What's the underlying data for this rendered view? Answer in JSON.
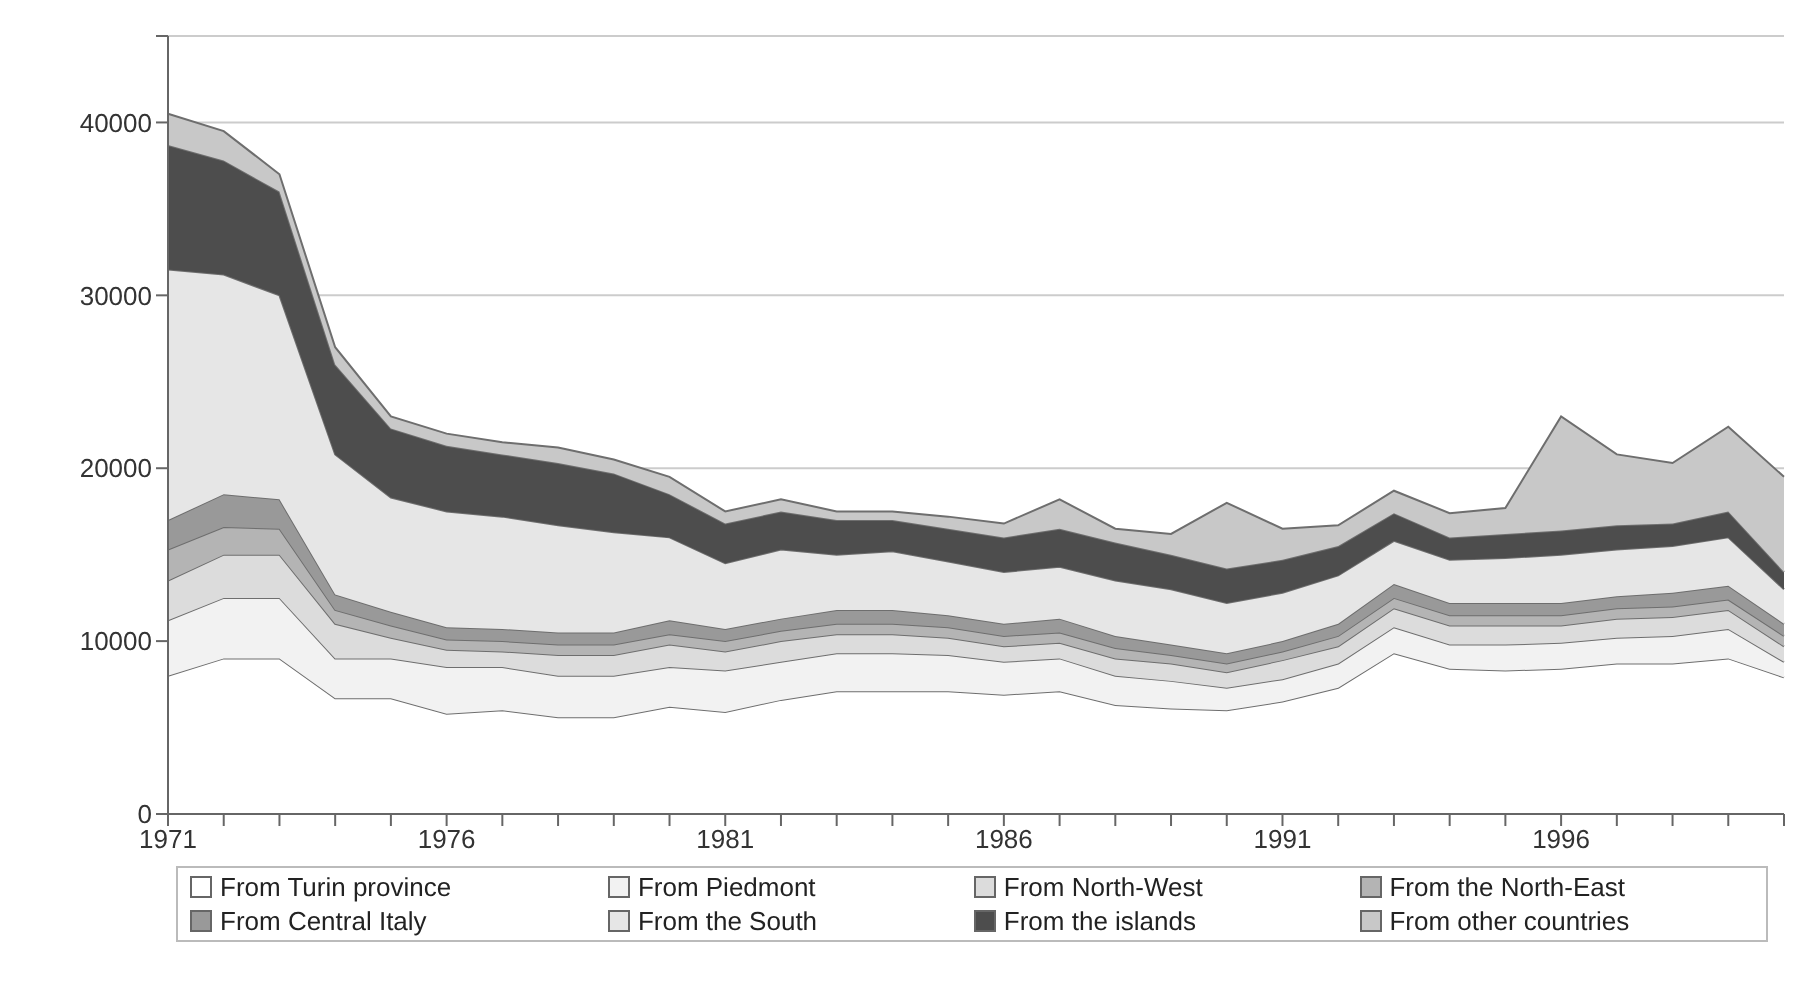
{
  "chart_data": {
    "type": "area",
    "stacked": true,
    "categories": [
      "1971",
      null,
      null,
      null,
      null,
      "1976",
      null,
      null,
      null,
      null,
      "1981",
      null,
      null,
      null,
      null,
      "1986",
      null,
      null,
      null,
      null,
      "1991",
      null,
      null,
      null,
      null,
      "1996",
      null,
      null,
      null,
      null
    ],
    "series": [
      {
        "name": "From Turin province",
        "color": "#ffffff",
        "values": [
          8000,
          9000,
          9000,
          6700,
          6700,
          5800,
          6000,
          5600,
          5600,
          6200,
          5900,
          6600,
          7100,
          7100,
          7100,
          6900,
          7100,
          6300,
          6100,
          6000,
          6500,
          7300,
          9300,
          8400,
          8300,
          8400,
          8700,
          8700,
          9000,
          7900
        ]
      },
      {
        "name": "From Piedmont",
        "color": "#f2f2f2",
        "values": [
          3200,
          3500,
          3500,
          2300,
          2300,
          2700,
          2500,
          2400,
          2400,
          2300,
          2400,
          2200,
          2200,
          2200,
          2100,
          1900,
          1900,
          1700,
          1600,
          1300,
          1300,
          1400,
          1500,
          1400,
          1500,
          1500,
          1500,
          1600,
          1700,
          900
        ]
      },
      {
        "name": "From North-West",
        "color": "#dcdcdc",
        "values": [
          2300,
          2500,
          2500,
          2000,
          1200,
          1000,
          900,
          1200,
          1200,
          1300,
          1100,
          1200,
          1100,
          1100,
          1000,
          900,
          900,
          1000,
          1000,
          900,
          1100,
          1000,
          1100,
          1100,
          1100,
          1000,
          1100,
          1100,
          1100,
          900
        ]
      },
      {
        "name": "From the North-East",
        "color": "#b4b4b4",
        "values": [
          1800,
          1600,
          1500,
          800,
          700,
          600,
          600,
          600,
          600,
          600,
          600,
          600,
          600,
          600,
          600,
          600,
          600,
          600,
          500,
          500,
          500,
          600,
          600,
          600,
          600,
          600,
          600,
          600,
          600,
          600
        ]
      },
      {
        "name": "From Central Italy",
        "color": "#999999",
        "values": [
          1700,
          1900,
          1700,
          900,
          800,
          700,
          700,
          700,
          700,
          800,
          700,
          700,
          800,
          800,
          700,
          700,
          800,
          700,
          600,
          600,
          600,
          700,
          800,
          700,
          700,
          700,
          700,
          800,
          800,
          700
        ]
      },
      {
        "name": "From the South",
        "color": "#e6e6e6",
        "values": [
          14500,
          12700,
          11800,
          8100,
          6600,
          6700,
          6500,
          6200,
          5800,
          4800,
          3800,
          4000,
          3200,
          3400,
          3100,
          3000,
          3000,
          3200,
          3200,
          2900,
          2800,
          2800,
          2500,
          2500,
          2600,
          2800,
          2700,
          2700,
          2800,
          2000
        ]
      },
      {
        "name": "From the islands",
        "color": "#4d4d4d",
        "values": [
          7200,
          6600,
          6000,
          5200,
          4000,
          3800,
          3600,
          3600,
          3400,
          2500,
          2300,
          2200,
          2000,
          1800,
          1900,
          2000,
          2200,
          2200,
          2000,
          2000,
          1900,
          1700,
          1600,
          1300,
          1400,
          1400,
          1400,
          1300,
          1500,
          1000
        ]
      },
      {
        "name": "From other countries",
        "color": "#c8c8c8",
        "values": [
          1800,
          1700,
          1000,
          1000,
          700,
          700,
          700,
          900,
          800,
          1000,
          700,
          700,
          500,
          500,
          700,
          800,
          1700,
          800,
          1200,
          3800,
          1800,
          1200,
          1300,
          1400,
          1500,
          6600,
          4100,
          3500,
          4900,
          5500
        ]
      }
    ],
    "ylim": [
      0,
      45000
    ],
    "yticks": [
      0,
      10000,
      20000,
      30000,
      40000,
      {
        "value": 45000,
        "label": null
      }
    ],
    "grid": "y",
    "legend": "bottom"
  }
}
